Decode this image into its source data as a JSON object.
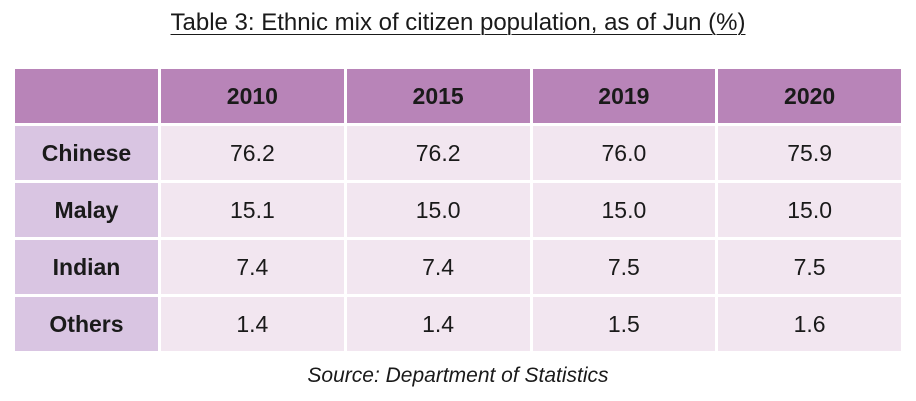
{
  "title": "Table 3: Ethnic mix of citizen population, as of Jun (%)",
  "columns": [
    "2010",
    "2015",
    "2019",
    "2020"
  ],
  "rows": [
    {
      "label": "Chinese",
      "values": [
        "76.2",
        "76.2",
        "76.0",
        "75.9"
      ]
    },
    {
      "label": "Malay",
      "values": [
        "15.1",
        "15.0",
        "15.0",
        "15.0"
      ]
    },
    {
      "label": "Indian",
      "values": [
        "7.4",
        "7.4",
        "7.5",
        "7.5"
      ]
    },
    {
      "label": "Others",
      "values": [
        "1.4",
        "1.4",
        "1.5",
        "1.6"
      ]
    }
  ],
  "source": "Source: Department of Statistics",
  "colors": {
    "header_bg": "#b884b8",
    "row_header_bg": "#d9c5e2",
    "cell_bg": "#f2e6f0"
  }
}
